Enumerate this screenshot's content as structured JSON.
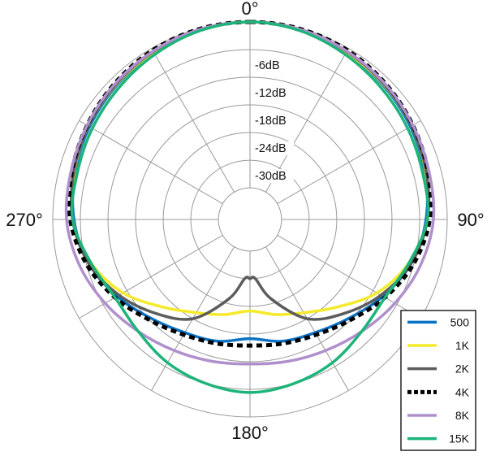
{
  "chart_data": {
    "type": "polar-line",
    "angle_unit": "degrees",
    "angular_labels": [
      {
        "text": "0°",
        "angle": 0
      },
      {
        "text": "90°",
        "angle": 90
      },
      {
        "text": "180°",
        "angle": 180
      },
      {
        "text": "270°",
        "angle": 270
      }
    ],
    "radial_ticks": [
      {
        "text": "-6dB",
        "db": -6
      },
      {
        "text": "-12dB",
        "db": -12
      },
      {
        "text": "-18dB",
        "db": -18
      },
      {
        "text": "-24dB",
        "db": -24
      },
      {
        "text": "-30dB",
        "db": -30
      }
    ],
    "rlim": [
      -36,
      0
    ],
    "angular_grid_step": 30,
    "grid": true,
    "legend_position": "bottom-right",
    "series": [
      {
        "name": "500",
        "color": "#0a72c4",
        "dash": "solid",
        "angles": [
          0,
          15,
          30,
          45,
          60,
          75,
          90,
          105,
          120,
          135,
          150,
          165,
          180,
          195,
          210,
          225,
          240,
          255,
          270,
          285,
          300,
          315,
          330,
          345
        ],
        "values": [
          0,
          -0.3,
          -1,
          -1.8,
          -2.6,
          -3.5,
          -4.6,
          -6.5,
          -9.5,
          -12.5,
          -14.5,
          -15.5,
          -17,
          -15.5,
          -14.5,
          -12.5,
          -9.5,
          -6.5,
          -4.6,
          -3.5,
          -2.6,
          -1.8,
          -1,
          -0.3
        ]
      },
      {
        "name": "1K",
        "color": "#f5ea2a",
        "dash": "solid",
        "angles": [
          0,
          15,
          30,
          45,
          60,
          75,
          90,
          105,
          120,
          135,
          150,
          165,
          180,
          195,
          210,
          225,
          240,
          255,
          270,
          285,
          300,
          315,
          330,
          345
        ],
        "values": [
          0,
          -0.3,
          -1,
          -1.6,
          -2.3,
          -3.3,
          -4.3,
          -7,
          -11,
          -16,
          -19.5,
          -21.5,
          -23,
          -21.5,
          -19.5,
          -16,
          -11,
          -7,
          -4.3,
          -3.3,
          -2.3,
          -1.6,
          -1,
          -0.3
        ]
      },
      {
        "name": "2K",
        "color": "#5c5c5c",
        "dash": "solid",
        "angles": [
          0,
          15,
          30,
          45,
          60,
          75,
          90,
          105,
          120,
          135,
          150,
          165,
          175,
          180,
          185,
          195,
          210,
          225,
          240,
          255,
          270,
          285,
          300,
          315,
          330,
          345
        ],
        "values": [
          0,
          -0.2,
          -0.8,
          -1.5,
          -2.3,
          -3.2,
          -4.3,
          -6.5,
          -10,
          -14,
          -18,
          -25,
          -30,
          -30,
          -30,
          -25,
          -18,
          -14,
          -10,
          -6.5,
          -4.3,
          -3.2,
          -2.3,
          -1.5,
          -0.8,
          -0.2
        ]
      },
      {
        "name": "4K",
        "color": "#000000",
        "dash": "dotted",
        "angles": [
          0,
          15,
          30,
          45,
          60,
          75,
          90,
          105,
          120,
          135,
          150,
          165,
          180,
          195,
          210,
          225,
          240,
          255,
          270,
          285,
          300,
          315,
          330,
          345
        ],
        "values": [
          0,
          -0.1,
          -0.5,
          -1.2,
          -2,
          -2.8,
          -3.8,
          -6,
          -9,
          -12,
          -14,
          -15,
          -15.5,
          -15,
          -14,
          -12,
          -9,
          -6,
          -3.8,
          -2.8,
          -2,
          -1.2,
          -0.5,
          -0.1
        ]
      },
      {
        "name": "8K",
        "color": "#b090cc",
        "dash": "solid",
        "angles": [
          0,
          15,
          30,
          45,
          60,
          75,
          90,
          105,
          120,
          135,
          150,
          165,
          180,
          195,
          210,
          225,
          240,
          255,
          270,
          285,
          300,
          315,
          330,
          345
        ],
        "values": [
          0,
          -0.2,
          -0.7,
          -1.3,
          -2,
          -2.6,
          -3,
          -4.5,
          -6.5,
          -8.5,
          -10,
          -11,
          -11.5,
          -11,
          -10,
          -8.5,
          -6.5,
          -4.5,
          -3,
          -2.6,
          -2,
          -1.3,
          -0.7,
          -0.2
        ]
      },
      {
        "name": "15K",
        "color": "#1db47a",
        "dash": "solid",
        "angles": [
          0,
          15,
          30,
          45,
          60,
          75,
          90,
          105,
          120,
          135,
          150,
          165,
          180,
          195,
          210,
          225,
          240,
          255,
          270,
          285,
          300,
          315,
          330,
          345
        ],
        "values": [
          0,
          -0.5,
          -1.5,
          -2.5,
          -3.3,
          -4,
          -4.3,
          -7,
          -9,
          -8.5,
          -7,
          -6,
          -5.3,
          -6,
          -7,
          -8.5,
          -9,
          -7,
          -4.3,
          -4,
          -3.3,
          -2.5,
          -1.5,
          -0.5
        ]
      }
    ]
  }
}
